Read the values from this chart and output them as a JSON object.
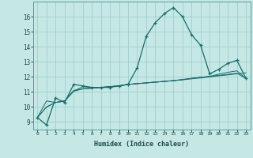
{
  "title": "",
  "xlabel": "Humidex (Indice chaleur)",
  "ylabel": "",
  "background_color": "#c5e8e5",
  "grid_color": "#9ecece",
  "line_color": "#1a6b6b",
  "x_values": [
    0,
    1,
    2,
    3,
    4,
    5,
    6,
    7,
    8,
    9,
    10,
    11,
    12,
    13,
    14,
    15,
    16,
    17,
    18,
    19,
    20,
    21,
    22,
    23
  ],
  "series1": [
    9.3,
    8.8,
    10.6,
    10.3,
    11.5,
    11.4,
    11.3,
    11.3,
    11.3,
    11.4,
    11.5,
    12.6,
    14.7,
    15.6,
    16.2,
    16.6,
    16.0,
    14.8,
    14.1,
    12.2,
    12.5,
    12.9,
    13.1,
    11.9
  ],
  "series2": [
    9.3,
    10.4,
    10.3,
    10.4,
    11.1,
    11.2,
    11.25,
    11.3,
    11.35,
    11.4,
    11.5,
    11.55,
    11.6,
    11.65,
    11.7,
    11.75,
    11.8,
    11.87,
    11.93,
    12.0,
    12.07,
    12.13,
    12.2,
    12.27
  ],
  "series3": [
    9.3,
    10.0,
    10.3,
    10.4,
    11.05,
    11.2,
    11.25,
    11.3,
    11.35,
    11.4,
    11.5,
    11.55,
    11.6,
    11.65,
    11.7,
    11.75,
    11.82,
    11.9,
    11.97,
    12.03,
    12.1,
    12.17,
    12.24,
    11.9
  ],
  "series4": [
    9.3,
    10.0,
    10.3,
    10.4,
    11.05,
    11.35,
    11.3,
    11.3,
    11.35,
    11.4,
    11.5,
    11.55,
    11.6,
    11.65,
    11.7,
    11.75,
    11.82,
    11.9,
    11.97,
    12.03,
    12.18,
    12.3,
    12.4,
    11.9
  ],
  "ylim": [
    8.5,
    17.0
  ],
  "xlim": [
    -0.5,
    23.5
  ],
  "yticks": [
    9,
    10,
    11,
    12,
    13,
    14,
    15,
    16
  ],
  "xticks": [
    0,
    1,
    2,
    3,
    4,
    5,
    6,
    7,
    8,
    9,
    10,
    11,
    12,
    13,
    14,
    15,
    16,
    17,
    18,
    19,
    20,
    21,
    22,
    23
  ]
}
